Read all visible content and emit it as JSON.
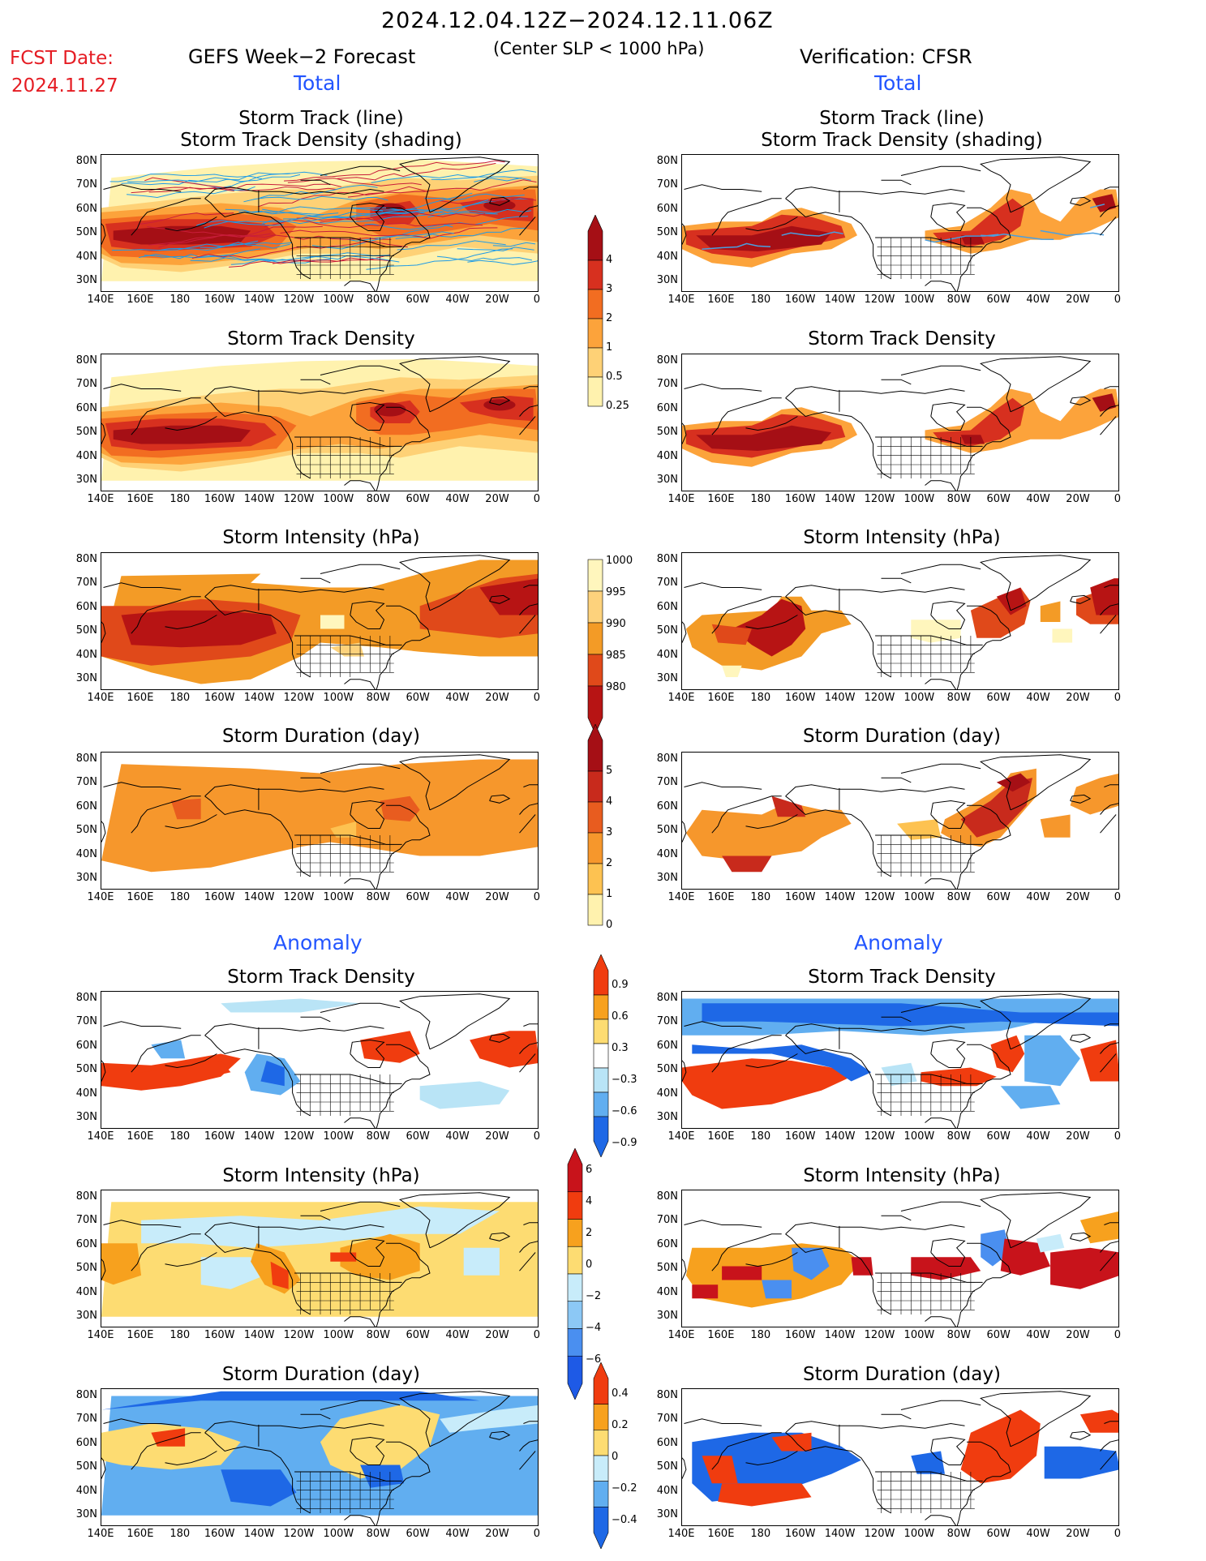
{
  "header": {
    "period": "2024.12.04.12Z−2024.12.11.06Z",
    "fcst_label": "FCST Date:",
    "fcst_date": "2024.11.27",
    "left_title": "GEFS Week−2 Forecast",
    "center_note": "(Center SLP < 1000 hPa)",
    "right_title": "Verification: CFSR",
    "total_left": "Total",
    "total_right": "Total",
    "anomaly_left": "Anomaly",
    "anomaly_right": "Anomaly"
  },
  "panels": {
    "track_line_title1": "Storm Track (line)",
    "track_line_title2": "Storm Track Density (shading)",
    "density_title": "Storm Track Density",
    "intensity_title": "Storm Intensity (hPa)",
    "duration_title": "Storm Duration (day)"
  },
  "axes": {
    "lat_labels": [
      "80N",
      "70N",
      "60N",
      "50N",
      "40N",
      "30N"
    ],
    "lon_labels": [
      "140E",
      "160E",
      "180",
      "160W",
      "140W",
      "120W",
      "100W",
      "80W",
      "60W",
      "40W",
      "20W",
      "0"
    ]
  },
  "colorbars": {
    "density": {
      "labels": [
        "4",
        "3",
        "2",
        "1",
        "0.5",
        "0.25"
      ],
      "colors": [
        "#a50f15",
        "#d7301f",
        "#f26d21",
        "#fca33b",
        "#fed176",
        "#fff2ae"
      ]
    },
    "intensity": {
      "labels": [
        "1000",
        "995",
        "990",
        "985",
        "980"
      ],
      "colors": [
        "#fff6bd",
        "#fdd27c",
        "#f39b26",
        "#e0491a",
        "#b71414"
      ]
    },
    "duration": {
      "labels": [
        "5",
        "4",
        "3",
        "2",
        "1",
        "0"
      ],
      "colors": [
        "#a50f15",
        "#c82a1c",
        "#e85c1f",
        "#f6972c",
        "#fdc251",
        "#fff2ae"
      ]
    },
    "anom_density": {
      "labels": [
        "0.9",
        "0.6",
        "0.3",
        "−0.3",
        "−0.6",
        "−0.9"
      ],
      "colors": [
        "#f03c0f",
        "#f7a11e",
        "#fddc72",
        "#ffffff",
        "#b9e4f6",
        "#61aef0",
        "#1e68e6"
      ]
    },
    "anom_intensity": {
      "labels": [
        "6",
        "4",
        "2",
        "0",
        "−2",
        "−4",
        "−6"
      ],
      "colors": [
        "#c8131b",
        "#f03c0f",
        "#f7a11e",
        "#fddc72",
        "#c8ecfa",
        "#8cc8f5",
        "#4a8ff0",
        "#1e5ae6"
      ]
    },
    "anom_duration": {
      "labels": [
        "0.4",
        "0.2",
        "0",
        "−0.2",
        "−0.4"
      ],
      "colors": [
        "#f03c0f",
        "#f7a11e",
        "#fddc72",
        "#c8ecfa",
        "#61aef0",
        "#1e68e6"
      ]
    }
  }
}
